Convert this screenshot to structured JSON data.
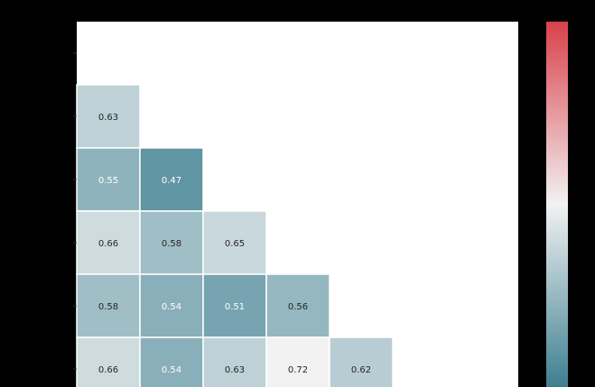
{
  "chart_data": {
    "type": "heatmap",
    "mask": "upper-triangle",
    "n": 7,
    "rows_visible": 6,
    "cells": [
      {
        "row": 1,
        "col": 0,
        "value": 0.63,
        "label": "0.63"
      },
      {
        "row": 2,
        "col": 0,
        "value": 0.55,
        "label": "0.55"
      },
      {
        "row": 2,
        "col": 1,
        "value": 0.47,
        "label": "0.47"
      },
      {
        "row": 3,
        "col": 0,
        "value": 0.66,
        "label": "0.66"
      },
      {
        "row": 3,
        "col": 1,
        "value": 0.58,
        "label": "0.58"
      },
      {
        "row": 3,
        "col": 2,
        "value": 0.65,
        "label": "0.65"
      },
      {
        "row": 4,
        "col": 0,
        "value": 0.58,
        "label": "0.58"
      },
      {
        "row": 4,
        "col": 1,
        "value": 0.54,
        "label": "0.54"
      },
      {
        "row": 4,
        "col": 2,
        "value": 0.51,
        "label": "0.51"
      },
      {
        "row": 4,
        "col": 3,
        "value": 0.56,
        "label": "0.56"
      },
      {
        "row": 5,
        "col": 0,
        "value": 0.66,
        "label": "0.66"
      },
      {
        "row": 5,
        "col": 1,
        "value": 0.54,
        "label": "0.54"
      },
      {
        "row": 5,
        "col": 2,
        "value": 0.63,
        "label": "0.63"
      },
      {
        "row": 5,
        "col": 3,
        "value": 0.72,
        "label": "0.72"
      },
      {
        "row": 5,
        "col": 4,
        "value": 0.62,
        "label": "0.62"
      }
    ],
    "colormap": {
      "name": "diverging",
      "low_color": "#3d7f91",
      "mid_color": "#f2f2f2",
      "high_color": "#d9414a",
      "vmin": 0.41,
      "vcenter": 0.72,
      "vmax": 1.03
    },
    "colorbar": true,
    "title": "",
    "xlabel": "",
    "ylabel": ""
  },
  "colors": {
    "background": "#000000",
    "plot_area": "#ffffff",
    "dark_text": "#262626",
    "light_text": "#ffffff"
  }
}
